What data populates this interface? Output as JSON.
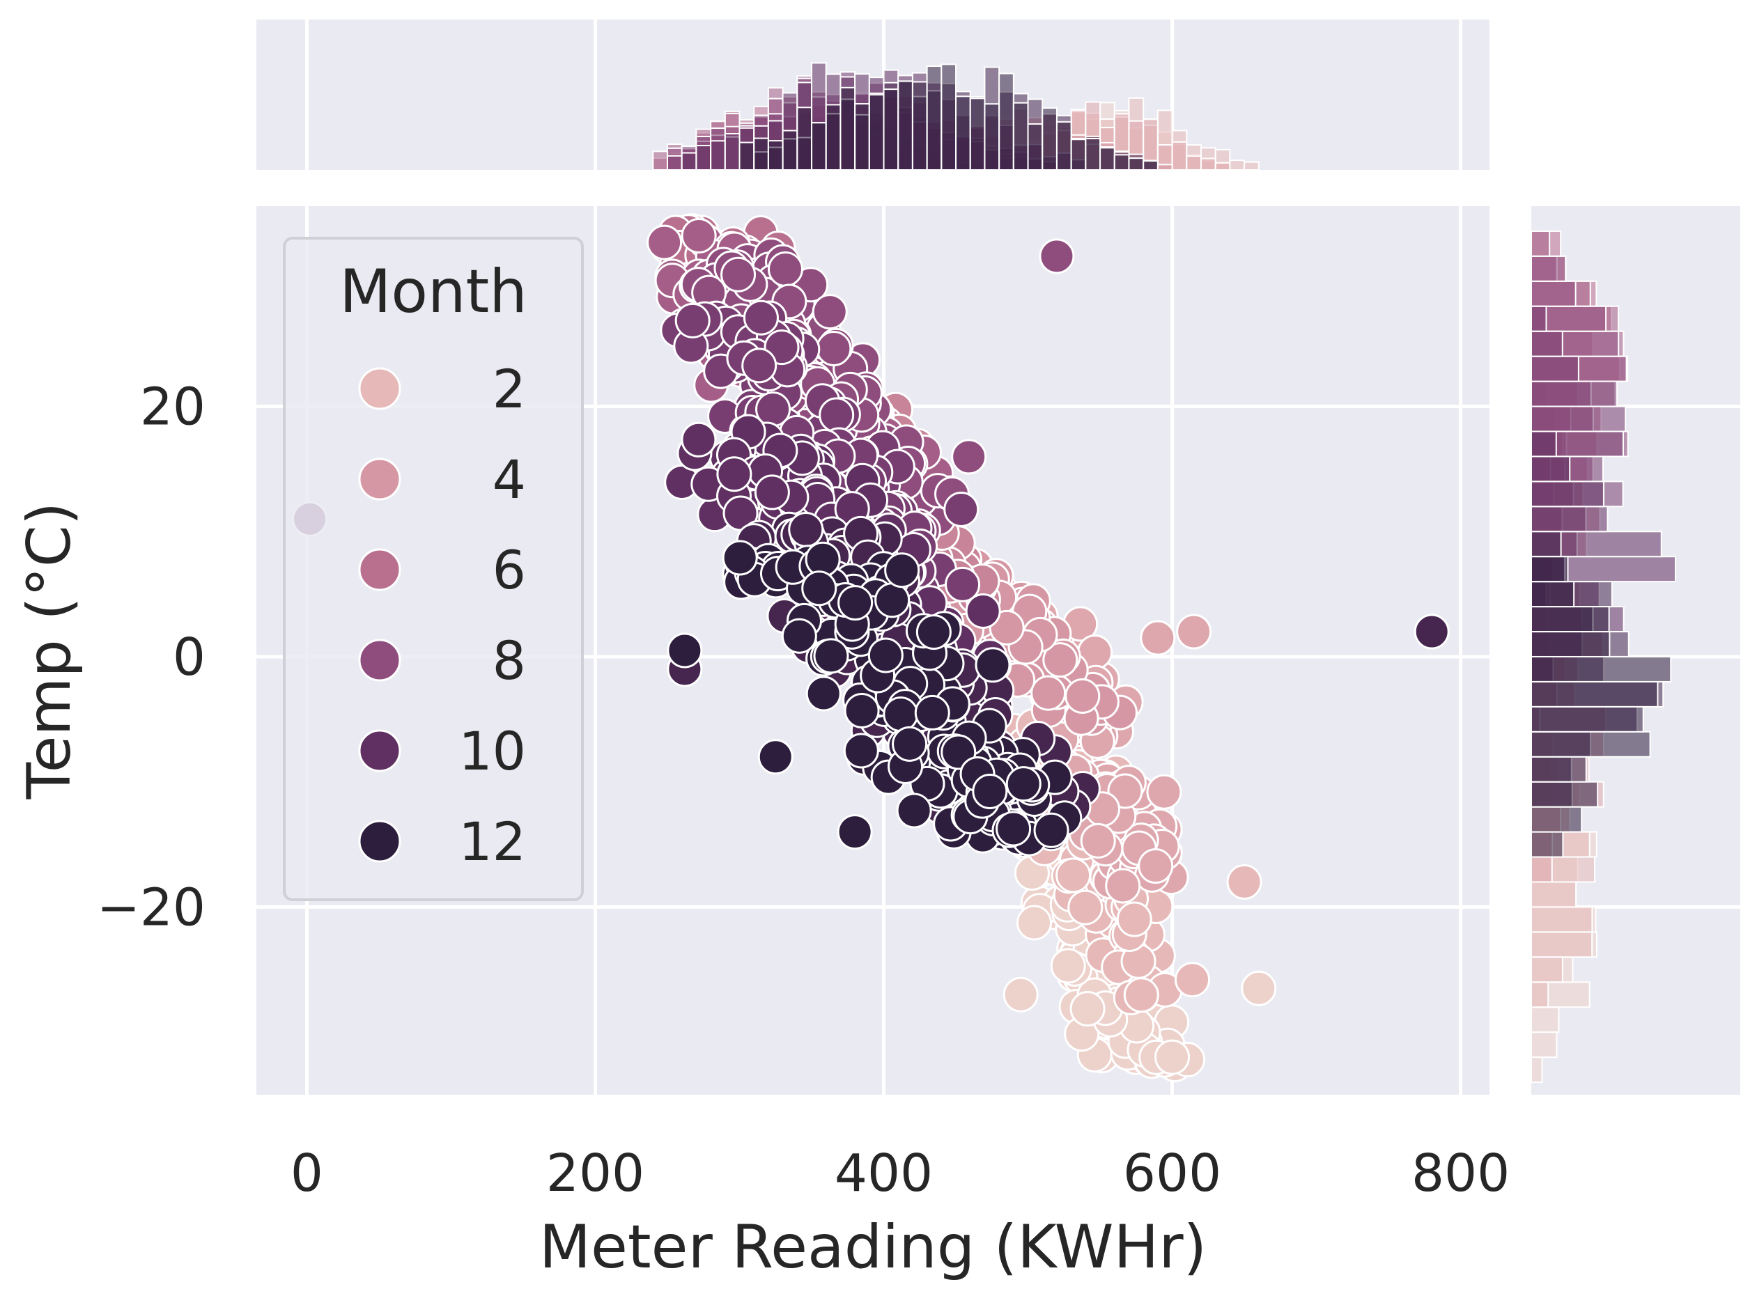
{
  "chart_data": {
    "type": "scatter",
    "subtype": "jointplot with marginal histograms",
    "xlabel": "Meter Reading (KWHr)",
    "ylabel": "Temp (°C)",
    "xlim": [
      -35,
      820
    ],
    "ylim": [
      -35,
      36
    ],
    "x_ticks": [
      0,
      200,
      400,
      600,
      800
    ],
    "x_tick_labels": [
      "0",
      "200",
      "400",
      "600",
      "800"
    ],
    "y_ticks": [
      -20,
      0,
      20
    ],
    "y_tick_labels": [
      "−20",
      "0",
      "20"
    ],
    "grid": true,
    "background": "#eaeaf2",
    "legend": {
      "title": "Month",
      "placement": "upper-left",
      "entries": [
        {
          "label": "2",
          "month": 2,
          "color": "#e6b8b8"
        },
        {
          "label": "4",
          "month": 4,
          "color": "#d597a3"
        },
        {
          "label": "6",
          "month": 6,
          "color": "#b9708f"
        },
        {
          "label": "8",
          "month": 8,
          "color": "#8f4d7e"
        },
        {
          "label": "10",
          "month": 10,
          "color": "#5f3061"
        },
        {
          "label": "12",
          "month": 12,
          "color": "#2d1e3e"
        }
      ]
    },
    "month_colors": {
      "1": "#edd1cb",
      "2": "#e6b8b8",
      "3": "#dea7ae",
      "4": "#d597a3",
      "5": "#c88499",
      "6": "#b9708f",
      "7": "#a55e87",
      "8": "#8f4d7e",
      "9": "#783e71",
      "10": "#5f3061",
      "11": "#46264f",
      "12": "#2d1e3e"
    },
    "clusters": [
      {
        "month": 1,
        "x_range": [
          470,
          640
        ],
        "y_range": [
          -33,
          -8
        ],
        "n": 110
      },
      {
        "month": 2,
        "x_range": [
          480,
          660
        ],
        "y_range": [
          -28,
          -6
        ],
        "n": 110
      },
      {
        "month": 3,
        "x_range": [
          480,
          640
        ],
        "y_range": [
          -18,
          3
        ],
        "n": 100
      },
      {
        "month": 4,
        "x_range": [
          420,
          600
        ],
        "y_range": [
          -5,
          8
        ],
        "n": 90
      },
      {
        "month": 5,
        "x_range": [
          330,
          520
        ],
        "y_range": [
          5,
          22
        ],
        "n": 110
      },
      {
        "month": 6,
        "x_range": [
          240,
          470
        ],
        "y_range": [
          13,
          34
        ],
        "n": 120
      },
      {
        "month": 7,
        "x_range": [
          240,
          470
        ],
        "y_range": [
          15,
          33
        ],
        "n": 120
      },
      {
        "month": 8,
        "x_range": [
          250,
          510
        ],
        "y_range": [
          10,
          32
        ],
        "n": 140
      },
      {
        "month": 9,
        "x_range": [
          250,
          520
        ],
        "y_range": [
          5,
          27
        ],
        "n": 140
      },
      {
        "month": 10,
        "x_range": [
          260,
          540
        ],
        "y_range": [
          -2,
          18
        ],
        "n": 170
      },
      {
        "month": 11,
        "x_range": [
          310,
          590
        ],
        "y_range": [
          -12,
          10
        ],
        "n": 170
      },
      {
        "month": 12,
        "x_range": [
          300,
          590
        ],
        "y_range": [
          -15,
          8
        ],
        "n": 180
      }
    ],
    "outliers": [
      {
        "x": 780,
        "y": 2,
        "month": 11
      },
      {
        "x": 2,
        "y": 11,
        "month": 9
      },
      {
        "x": 380,
        "y": -14,
        "month": 12
      },
      {
        "x": 520,
        "y": 32,
        "month": 8
      },
      {
        "x": 325,
        "y": -8,
        "month": 12
      },
      {
        "x": 262,
        "y": 0.5,
        "month": 12
      },
      {
        "x": 262,
        "y": -1,
        "month": 11
      },
      {
        "x": 615,
        "y": 2,
        "month": 3
      },
      {
        "x": 590,
        "y": 1.5,
        "month": 3
      },
      {
        "x": 495,
        "y": -27,
        "month": 1
      },
      {
        "x": 600,
        "y": -32,
        "month": 1
      },
      {
        "x": 660,
        "y": -26.5,
        "month": 1
      },
      {
        "x": 650,
        "y": -18,
        "month": 2
      }
    ],
    "top_histogram": {
      "x_range": [
        240,
        680
      ],
      "peak_x": 390
    },
    "right_histogram": {
      "y_range": [
        -31,
        34
      ],
      "peak_y": 1
    }
  }
}
